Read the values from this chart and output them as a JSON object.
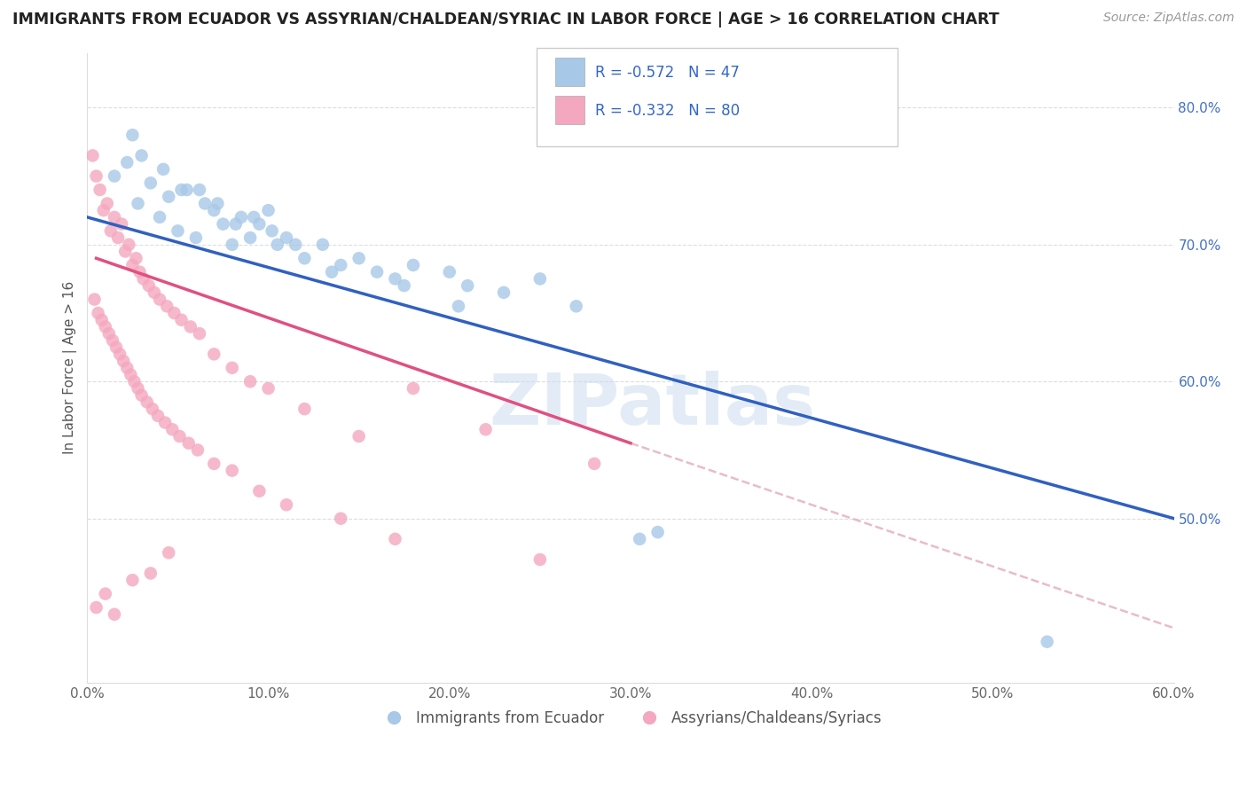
{
  "title": "IMMIGRANTS FROM ECUADOR VS ASSYRIAN/CHALDEAN/SYRIAC IN LABOR FORCE | AGE > 16 CORRELATION CHART",
  "source_text": "Source: ZipAtlas.com",
  "ylabel": "In Labor Force | Age > 16",
  "legend_label_1": "Immigrants from Ecuador",
  "legend_label_2": "Assyrians/Chaldeans/Syriacs",
  "r1": -0.572,
  "n1": 47,
  "r2": -0.332,
  "n2": 80,
  "xlim": [
    0.0,
    60.0
  ],
  "ylim": [
    38.0,
    84.0
  ],
  "xticks": [
    0.0,
    10.0,
    20.0,
    30.0,
    40.0,
    50.0,
    60.0
  ],
  "yticks_right": [
    50.0,
    60.0,
    70.0,
    80.0
  ],
  "color_blue": "#a8c8e8",
  "color_pink": "#f4a8c0",
  "color_blue_line": "#3060c0",
  "color_pink_line": "#e05080",
  "color_dashed": "#e0a0b0",
  "color_blue_dashed": "#a0b8d8",
  "background_color": "#ffffff",
  "watermark_text": "ZIPatlas",
  "blue_line_x0": 0.0,
  "blue_line_y0": 72.0,
  "blue_line_x1": 60.0,
  "blue_line_y1": 50.0,
  "pink_line_x0": 0.5,
  "pink_line_y0": 69.0,
  "pink_line_x1": 30.0,
  "pink_line_y1": 55.5,
  "pink_dash_x0": 30.0,
  "pink_dash_y0": 55.5,
  "pink_dash_x1": 60.0,
  "pink_dash_y1": 42.0,
  "blue_scatter_x": [
    1.5,
    2.2,
    2.8,
    3.5,
    4.0,
    4.5,
    5.0,
    5.5,
    6.0,
    6.5,
    7.0,
    7.5,
    8.0,
    8.5,
    9.0,
    9.5,
    10.0,
    10.5,
    11.0,
    12.0,
    13.0,
    14.0,
    15.0,
    16.0,
    17.0,
    18.0,
    20.0,
    21.0,
    23.0,
    25.0,
    27.0,
    30.5,
    53.0
  ],
  "blue_scatter_y": [
    75.0,
    76.0,
    73.0,
    74.5,
    72.0,
    73.5,
    71.0,
    74.0,
    70.5,
    73.0,
    72.5,
    71.5,
    70.0,
    72.0,
    70.5,
    71.5,
    72.5,
    70.0,
    70.5,
    69.0,
    70.0,
    68.5,
    69.0,
    68.0,
    67.5,
    68.5,
    68.0,
    67.0,
    66.5,
    67.5,
    65.5,
    48.5,
    41.0
  ],
  "blue_scatter_x2": [
    2.5,
    3.0,
    4.2,
    5.2,
    6.2,
    7.2,
    8.2,
    9.2,
    10.2,
    11.5,
    13.5,
    17.5,
    20.5,
    31.5
  ],
  "blue_scatter_y2": [
    78.0,
    76.5,
    75.5,
    74.0,
    74.0,
    73.0,
    71.5,
    72.0,
    71.0,
    70.0,
    68.0,
    67.0,
    65.5,
    49.0
  ],
  "pink_scatter_x": [
    0.3,
    0.5,
    0.7,
    0.9,
    1.1,
    1.3,
    1.5,
    1.7,
    1.9,
    2.1,
    2.3,
    2.5,
    2.7,
    2.9,
    3.1,
    3.4,
    3.7,
    4.0,
    4.4,
    4.8,
    5.2,
    5.7,
    6.2,
    7.0,
    8.0,
    9.0,
    10.0,
    12.0,
    15.0,
    18.0,
    22.0,
    28.0
  ],
  "pink_scatter_y": [
    76.5,
    75.0,
    74.0,
    72.5,
    73.0,
    71.0,
    72.0,
    70.5,
    71.5,
    69.5,
    70.0,
    68.5,
    69.0,
    68.0,
    67.5,
    67.0,
    66.5,
    66.0,
    65.5,
    65.0,
    64.5,
    64.0,
    63.5,
    62.0,
    61.0,
    60.0,
    59.5,
    58.0,
    56.0,
    59.5,
    56.5,
    54.0
  ],
  "pink_scatter_x2": [
    0.4,
    0.6,
    0.8,
    1.0,
    1.2,
    1.4,
    1.6,
    1.8,
    2.0,
    2.2,
    2.4,
    2.6,
    2.8,
    3.0,
    3.3,
    3.6,
    3.9,
    4.3,
    4.7,
    5.1,
    5.6,
    6.1,
    7.0,
    8.0,
    9.5,
    11.0,
    14.0,
    17.0,
    25.0
  ],
  "pink_scatter_y2": [
    66.0,
    65.0,
    64.5,
    64.0,
    63.5,
    63.0,
    62.5,
    62.0,
    61.5,
    61.0,
    60.5,
    60.0,
    59.5,
    59.0,
    58.5,
    58.0,
    57.5,
    57.0,
    56.5,
    56.0,
    55.5,
    55.0,
    54.0,
    53.5,
    52.0,
    51.0,
    50.0,
    48.5,
    47.0
  ],
  "pink_outlier_x": [
    0.5,
    1.0,
    1.5,
    2.5,
    3.5,
    4.5
  ],
  "pink_outlier_y": [
    43.5,
    44.5,
    43.0,
    45.5,
    46.0,
    47.5
  ]
}
